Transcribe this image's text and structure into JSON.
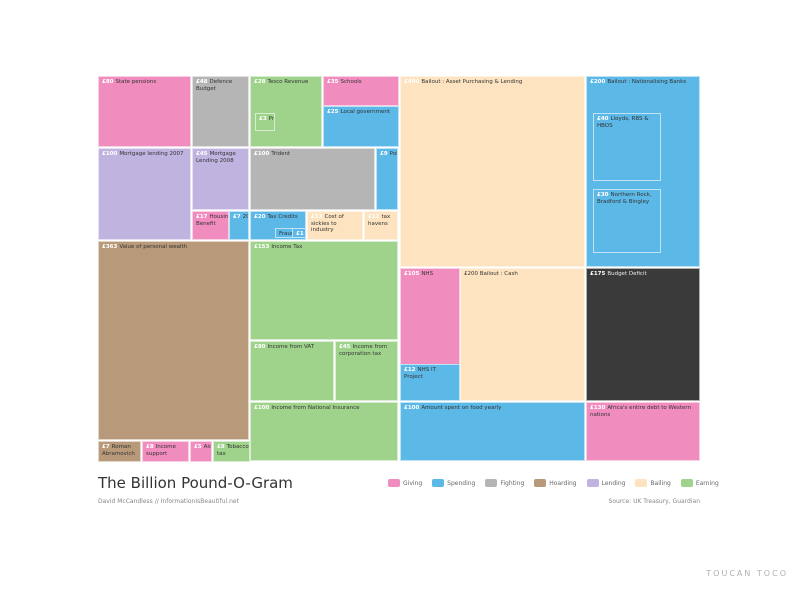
{
  "chart_data": {
    "type": "treemap",
    "title": "The Billion Pound-O-Gram",
    "byline": "David McCandless // InformationIsBeautiful.net",
    "source": "Source: UK Treasury, Guardian",
    "legend": [
      {
        "name": "Giving",
        "color": "#f08cbe"
      },
      {
        "name": "Spending",
        "color": "#5cb8e6"
      },
      {
        "name": "Fighting",
        "color": "#b5b5b5"
      },
      {
        "name": "Hoarding",
        "color": "#b89a7a"
      },
      {
        "name": "Lending",
        "color": "#c0b3e0"
      },
      {
        "name": "Bailing",
        "color": "#fde3bf"
      },
      {
        "name": "Earning",
        "color": "#9fd38c"
      }
    ],
    "items": [
      {
        "value": "£80",
        "label": "State pensions",
        "category": "Giving"
      },
      {
        "value": "£48",
        "label": "Defence Budget",
        "category": "Fighting"
      },
      {
        "value": "£28",
        "label": "Tesco Revenue",
        "category": "Earning"
      },
      {
        "value": "£3",
        "label": "Profits",
        "category": "Earning"
      },
      {
        "value": "£35",
        "label": "Schools",
        "category": "Giving"
      },
      {
        "value": "£25",
        "label": "Local government",
        "category": "Spending"
      },
      {
        "value": "£400",
        "label": "Bailout : Asset Purchasing & Lending",
        "category": "Bailing"
      },
      {
        "value": "£200",
        "label": "Bailout : Nationalising Banks",
        "category": "Spending"
      },
      {
        "value": "£40",
        "label": "Lloyds, RBS & HBOS",
        "category": "Spending"
      },
      {
        "value": "£30",
        "label": "Northern Rock, Bradford & Bingley",
        "category": "Spending"
      },
      {
        "value": "£100",
        "label": "Mortgage lending 2007",
        "category": "Lending"
      },
      {
        "value": "£45",
        "label": "Mortgage Lending 2008",
        "category": "Lending"
      },
      {
        "value": "£100",
        "label": "Trident",
        "category": "Fighting"
      },
      {
        "value": "£9",
        "label": "Police",
        "category": "Spending"
      },
      {
        "value": "£17",
        "label": "Housing Benefit",
        "category": "Giving"
      },
      {
        "value": "£7",
        "label": "2012",
        "category": "Spending"
      },
      {
        "value": "£20",
        "label": "Tax Credits",
        "category": "Spending"
      },
      {
        "value": "",
        "label": "Fraud",
        "category": "Spending"
      },
      {
        "value": "£1",
        "label": "",
        "category": "Spending"
      },
      {
        "value": "£13",
        "label": "Cost of sickies to industry",
        "category": "Bailing"
      },
      {
        "value": "£12",
        "label": "tax havens",
        "category": "Bailing"
      },
      {
        "value": "£363",
        "label": "Value of personal wealth",
        "category": "Hoarding"
      },
      {
        "value": "£153",
        "label": "Income Tax",
        "category": "Earning"
      },
      {
        "value": "£105",
        "label": "NHS",
        "category": "Giving"
      },
      {
        "value": "",
        "label": "£200 Bailout : Cash",
        "category": "Bailing"
      },
      {
        "value": "£175",
        "label": "Budget Deficit",
        "category": "Dark"
      },
      {
        "value": "£80",
        "label": "Income from VAT",
        "category": "Earning"
      },
      {
        "value": "£45",
        "label": "Income from corporation tax",
        "category": "Earning"
      },
      {
        "value": "£12",
        "label": "NHS IT Project",
        "category": "Spending"
      },
      {
        "value": "£100",
        "label": "Income from National Insurance",
        "category": "Earning"
      },
      {
        "value": "£100",
        "label": "Amount spent on food yearly",
        "category": "Spending"
      },
      {
        "value": "£130",
        "label": "Africa's entire debt to Western nations",
        "category": "Giving"
      },
      {
        "value": "£7",
        "label": "Roman Abramovich",
        "category": "Hoarding"
      },
      {
        "value": "£8",
        "label": "Income support",
        "category": "Giving"
      },
      {
        "value": "£5",
        "label": "Aid",
        "category": "Giving"
      },
      {
        "value": "£8",
        "label": "Tobacco tax",
        "category": "Earning"
      }
    ]
  },
  "branding": {
    "logo_text": "TOUCAN TOCO"
  }
}
